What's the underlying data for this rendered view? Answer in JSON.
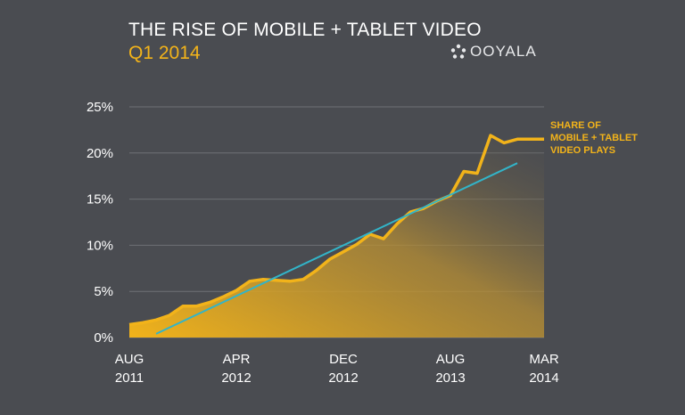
{
  "header": {
    "title": "THE RISE OF MOBILE + TABLET VIDEO",
    "subtitle": "Q1 2014",
    "logo_text": "OOYALA"
  },
  "colors": {
    "background": "#4a4c51",
    "series": "#f2b31a",
    "trend": "#32b4c8",
    "title": "#ffffff"
  },
  "chart_data": {
    "type": "area",
    "title": "THE RISE OF MOBILE + TABLET VIDEO",
    "subtitle": "Q1 2014",
    "xlabel": "",
    "ylabel": "",
    "ylim": [
      0,
      25
    ],
    "y_unit": "%",
    "y_ticks": [
      "0%",
      "5%",
      "10%",
      "15%",
      "20%",
      "25%"
    ],
    "y_tick_values": [
      0,
      5,
      10,
      15,
      20,
      25
    ],
    "x_tick_labels": [
      {
        "month": "AUG",
        "year": "2011",
        "index": 0
      },
      {
        "month": "APR",
        "year": "2012",
        "index": 8
      },
      {
        "month": "DEC",
        "year": "2012",
        "index": 16
      },
      {
        "month": "AUG",
        "year": "2013",
        "index": 24
      },
      {
        "month": "MAR",
        "year": "2014",
        "index": 31
      }
    ],
    "x_domain": [
      0,
      31
    ],
    "grid": true,
    "series": [
      {
        "name": "SHARE OF MOBILE + TABLET VIDEO PLAYS",
        "label_lines": [
          "SHARE OF",
          "MOBILE + TABLET",
          "VIDEO PLAYS"
        ],
        "x": [
          0,
          1,
          2,
          3,
          4,
          5,
          6,
          7,
          8,
          9,
          10,
          11,
          12,
          13,
          14,
          15,
          16,
          17,
          18,
          19,
          20,
          21,
          22,
          23,
          24,
          25,
          26,
          27,
          28,
          29,
          30,
          31
        ],
        "values": [
          1.4,
          1.6,
          1.9,
          2.4,
          3.4,
          3.4,
          3.8,
          4.4,
          5.1,
          6.1,
          6.3,
          6.2,
          6.1,
          6.3,
          7.3,
          8.5,
          9.3,
          10.1,
          11.2,
          10.7,
          12.3,
          13.6,
          14.0,
          14.8,
          15.4,
          18.0,
          17.8,
          21.9,
          21.1,
          21.5,
          21.5,
          21.5
        ]
      },
      {
        "name": "trend",
        "x": [
          2,
          29
        ],
        "values": [
          0.4,
          18.9
        ]
      }
    ]
  }
}
